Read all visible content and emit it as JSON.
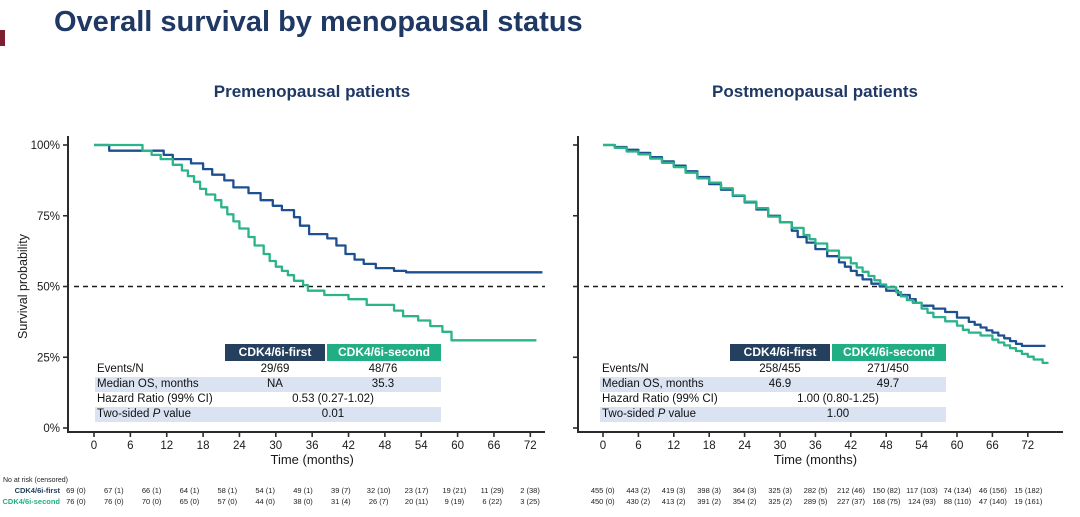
{
  "title": "Overall survival by menopausal status",
  "colors": {
    "title_navy": "#1F3864",
    "header_navy": "#24405E",
    "header_green": "#21AE85",
    "curve_navy": "#1D4F91",
    "curve_green": "#2BB389",
    "row_shade": "#DAE3F1",
    "axis": "#2B2B2B",
    "edge_accent_maroon": "#7E1F2F"
  },
  "panels": [
    {
      "subtitle": "Premenopausal patients",
      "stats": {
        "col1": "CDK4/6i-first",
        "col2": "CDK4/6i-second",
        "rows": [
          {
            "label": "Events/N",
            "v1": "29/69",
            "v2": "48/76",
            "shaded": false,
            "span": false
          },
          {
            "label": "Median OS, months",
            "v1": "NA",
            "v2": "35.3",
            "shaded": true,
            "span": false
          },
          {
            "label": "Hazard Ratio (99% CI)",
            "v1": "0.53 (0.27-1.02)",
            "shaded": false,
            "span": true
          },
          {
            "label_parts": [
              "Two-sided ",
              "P",
              " value"
            ],
            "italic_index": 1,
            "v1": "0.01",
            "shaded": true,
            "span": true
          }
        ]
      }
    },
    {
      "subtitle": "Postmenopausal patients",
      "stats": {
        "col1": "CDK4/6i-first",
        "col2": "CDK4/6i-second",
        "rows": [
          {
            "label": "Events/N",
            "v1": "258/455",
            "v2": "271/450",
            "shaded": false,
            "span": false
          },
          {
            "label": "Median OS, months",
            "v1": "46.9",
            "v2": "49.7",
            "shaded": true,
            "span": false
          },
          {
            "label": "Hazard Ratio (99% CI)",
            "v1": "1.00 (0.80-1.25)",
            "shaded": false,
            "span": true
          },
          {
            "label_parts": [
              "Two-sided ",
              "P",
              " value"
            ],
            "italic_index": 1,
            "v1": "1.00",
            "shaded": true,
            "span": true
          }
        ]
      }
    }
  ],
  "chart_data": [
    {
      "type": "line",
      "title": "Premenopausal patients",
      "xlabel": "Time (months)",
      "ylabel": "Survival probability",
      "x_ticks": [
        0,
        6,
        12,
        18,
        24,
        30,
        36,
        42,
        48,
        54,
        60,
        66,
        72
      ],
      "y_tick_labels": [
        "100%",
        "75%",
        "50%",
        "25%",
        "0%"
      ],
      "y_tick_values": [
        100,
        75,
        50,
        25,
        0
      ],
      "ylim": [
        0,
        100
      ],
      "ref_line_pct": 50,
      "series": [
        {
          "name": "CDK4/6i-first",
          "color": "navy",
          "points": [
            [
              0,
              100
            ],
            [
              2.5,
              98
            ],
            [
              11.5,
              96.5
            ],
            [
              13,
              95
            ],
            [
              16,
              93.5
            ],
            [
              18,
              91.5
            ],
            [
              19.5,
              89.5
            ],
            [
              21.5,
              87.5
            ],
            [
              23,
              85
            ],
            [
              25.5,
              83
            ],
            [
              27.5,
              80.5
            ],
            [
              29.5,
              78.5
            ],
            [
              31,
              77
            ],
            [
              33,
              74.5
            ],
            [
              34,
              71.5
            ],
            [
              35.5,
              68.5
            ],
            [
              38.5,
              67
            ],
            [
              40,
              64.5
            ],
            [
              41.5,
              61.5
            ],
            [
              43,
              59.5
            ],
            [
              44.5,
              58
            ],
            [
              46.5,
              56.5
            ],
            [
              49.5,
              55.5
            ],
            [
              51.5,
              55
            ],
            [
              74,
              55
            ]
          ]
        },
        {
          "name": "CDK4/6i-second",
          "color": "green",
          "points": [
            [
              0,
              100
            ],
            [
              8,
              98
            ],
            [
              9.5,
              96.5
            ],
            [
              11,
              95
            ],
            [
              13,
              93
            ],
            [
              14.5,
              91
            ],
            [
              15.5,
              89
            ],
            [
              16.5,
              87
            ],
            [
              17.5,
              84.5
            ],
            [
              18.5,
              82.5
            ],
            [
              20,
              80.5
            ],
            [
              21,
              78
            ],
            [
              22,
              75.5
            ],
            [
              23,
              73
            ],
            [
              24,
              70.5
            ],
            [
              25.5,
              67.5
            ],
            [
              26.5,
              64.5
            ],
            [
              28,
              61.5
            ],
            [
              29,
              59
            ],
            [
              30,
              57
            ],
            [
              31,
              55.5
            ],
            [
              32,
              54
            ],
            [
              33,
              52
            ],
            [
              34.5,
              50.5
            ],
            [
              35.3,
              48.5
            ],
            [
              38,
              47
            ],
            [
              42,
              45.5
            ],
            [
              45,
              43.5
            ],
            [
              49.5,
              41.5
            ],
            [
              51,
              39.5
            ],
            [
              53.5,
              38
            ],
            [
              55.5,
              36
            ],
            [
              57.5,
              34
            ],
            [
              59,
              31
            ],
            [
              73,
              31
            ]
          ]
        }
      ]
    },
    {
      "type": "line",
      "title": "Postmenopausal patients",
      "xlabel": "Time (months)",
      "ylabel": "",
      "x_ticks": [
        0,
        6,
        12,
        18,
        24,
        30,
        36,
        42,
        48,
        54,
        60,
        66,
        72
      ],
      "y_tick_labels": [],
      "y_tick_values": [
        100,
        75,
        50,
        25,
        0
      ],
      "ylim": [
        0,
        100
      ],
      "ref_line_pct": 50,
      "series": [
        {
          "name": "CDK4/6i-first",
          "color": "navy",
          "points": [
            [
              0,
              100
            ],
            [
              2,
              99.3
            ],
            [
              4,
              98.3
            ],
            [
              6,
              97.2
            ],
            [
              8,
              95.7
            ],
            [
              10,
              94.2
            ],
            [
              12,
              92.7
            ],
            [
              14,
              90.7
            ],
            [
              16,
              88.7
            ],
            [
              18,
              86.2
            ],
            [
              20,
              84.2
            ],
            [
              22,
              82
            ],
            [
              24,
              79.7
            ],
            [
              26,
              77.2
            ],
            [
              28,
              75
            ],
            [
              30,
              72.7
            ],
            [
              32,
              69.7
            ],
            [
              33,
              67.5
            ],
            [
              34.5,
              65.5
            ],
            [
              36,
              63.2
            ],
            [
              38,
              60.7
            ],
            [
              40,
              58.5
            ],
            [
              41,
              57
            ],
            [
              42,
              55.5
            ],
            [
              43,
              54
            ],
            [
              44,
              52.5
            ],
            [
              45.5,
              51
            ],
            [
              46.9,
              50
            ],
            [
              48,
              48.5
            ],
            [
              50,
              47
            ],
            [
              52,
              45.5
            ],
            [
              53,
              44.2
            ],
            [
              54,
              43.2
            ],
            [
              56,
              42.2
            ],
            [
              58,
              41
            ],
            [
              60,
              39
            ],
            [
              62,
              37.5
            ],
            [
              63,
              36.5
            ],
            [
              64,
              35.5
            ],
            [
              65,
              34.5
            ],
            [
              66,
              33.7
            ],
            [
              67,
              32.7
            ],
            [
              68,
              31.7
            ],
            [
              69,
              30.7
            ],
            [
              70,
              29.7
            ],
            [
              71,
              29
            ],
            [
              75,
              29
            ]
          ]
        },
        {
          "name": "CDK4/6i-second",
          "color": "green",
          "points": [
            [
              0,
              100
            ],
            [
              2,
              99
            ],
            [
              4,
              97.7
            ],
            [
              6,
              96.7
            ],
            [
              8,
              95.2
            ],
            [
              10,
              93.7
            ],
            [
              12,
              92.2
            ],
            [
              14,
              90.2
            ],
            [
              16,
              88.2
            ],
            [
              18,
              86.7
            ],
            [
              20,
              84.7
            ],
            [
              22,
              82.2
            ],
            [
              24,
              80
            ],
            [
              26,
              77.7
            ],
            [
              28,
              74.7
            ],
            [
              30,
              72.7
            ],
            [
              32,
              70.7
            ],
            [
              34,
              68.2
            ],
            [
              35,
              66.7
            ],
            [
              36,
              65.2
            ],
            [
              38,
              62.7
            ],
            [
              40,
              60.2
            ],
            [
              42,
              58.2
            ],
            [
              43,
              56.7
            ],
            [
              44,
              55.2
            ],
            [
              45,
              53.7
            ],
            [
              46,
              52.2
            ],
            [
              47,
              50.7
            ],
            [
              48,
              49.7
            ],
            [
              49.7,
              48
            ],
            [
              50.5,
              46.5
            ],
            [
              51.5,
              45.2
            ],
            [
              52.5,
              44.2
            ],
            [
              54,
              42.2
            ],
            [
              55,
              40.7
            ],
            [
              56,
              39.2
            ],
            [
              58,
              37.7
            ],
            [
              60,
              36.2
            ],
            [
              61,
              34.7
            ],
            [
              62,
              33.7
            ],
            [
              64,
              32.7
            ],
            [
              66,
              31.2
            ],
            [
              67,
              30.2
            ],
            [
              68,
              29.2
            ],
            [
              69,
              28.2
            ],
            [
              70,
              27.2
            ],
            [
              71,
              26.2
            ],
            [
              72,
              25.2
            ],
            [
              73,
              24.2
            ],
            [
              74.5,
              23
            ],
            [
              75.5,
              23
            ]
          ]
        }
      ]
    }
  ],
  "at_risk": {
    "caption": "No at risk (censored)",
    "groups": [
      {
        "label": "CDK4/6i-first",
        "color": "navy",
        "left": [
          "69 (0)",
          "67 (1)",
          "66 (1)",
          "64 (1)",
          "58 (1)",
          "54 (1)",
          "49 (1)",
          "39 (7)",
          "32 (10)",
          "23 (17)",
          "19 (21)",
          "11 (29)",
          "2 (38)"
        ],
        "right": [
          "455 (0)",
          "443 (2)",
          "419 (3)",
          "398 (3)",
          "364 (3)",
          "325 (3)",
          "282 (5)",
          "212 (46)",
          "150 (82)",
          "117 (103)",
          "74 (134)",
          "46 (156)",
          "15 (182)"
        ]
      },
      {
        "label": "CDK4/6i-second",
        "color": "green",
        "left": [
          "76 (0)",
          "76 (0)",
          "70 (0)",
          "65 (0)",
          "57 (0)",
          "44 (0)",
          "38 (0)",
          "31 (4)",
          "26 (7)",
          "20 (11)",
          "9 (19)",
          "6 (22)",
          "3 (25)"
        ],
        "right": [
          "450 (0)",
          "430 (2)",
          "413 (2)",
          "391 (2)",
          "354 (2)",
          "325 (2)",
          "289 (5)",
          "227 (37)",
          "168 (75)",
          "124 (93)",
          "88 (110)",
          "47 (140)",
          "19 (161)"
        ]
      }
    ]
  }
}
